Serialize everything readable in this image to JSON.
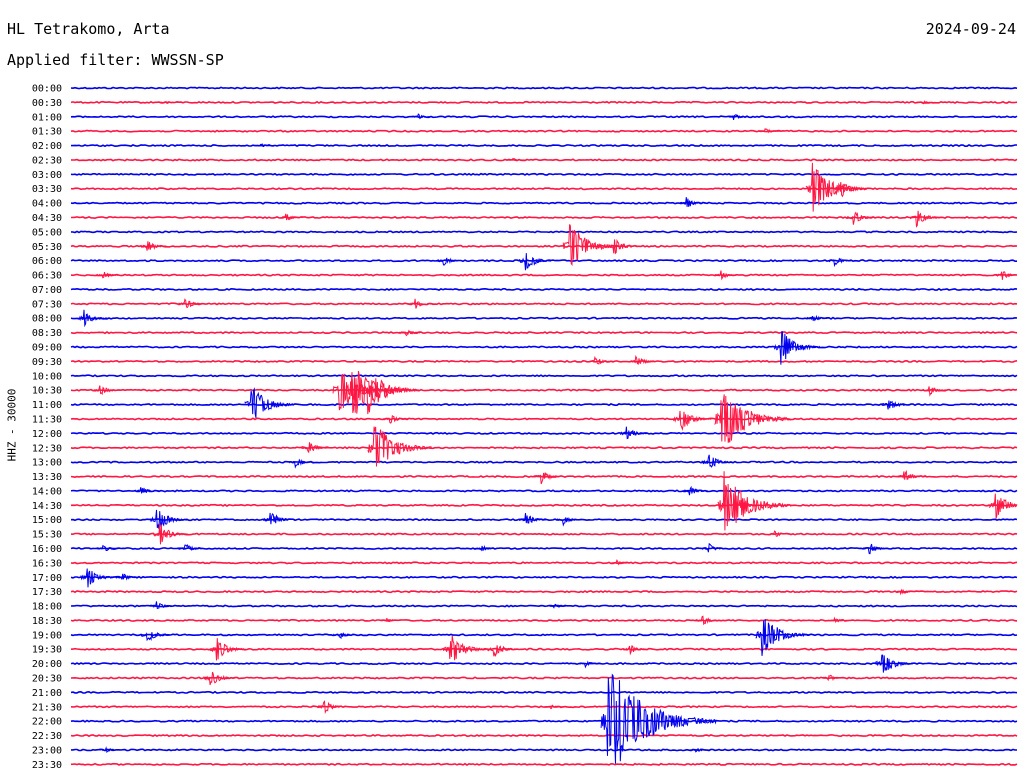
{
  "header": {
    "station": "HL Tetrakomo, Arta",
    "date": "2024-09-24",
    "filter": "Applied filter: WWSSN-SP"
  },
  "colors": {
    "odd_trace": "#0000ee",
    "even_trace": "#ff1744"
  },
  "chart_data": {
    "type": "line",
    "title": "HL Tetrakomo, Arta",
    "subtitle": "Applied filter: WWSSN-SP",
    "date": "2024-09-24",
    "ylabel": "HHZ - 30000",
    "rows": [
      "00:00",
      "00:30",
      "01:00",
      "01:30",
      "02:00",
      "02:30",
      "03:00",
      "03:30",
      "04:00",
      "04:30",
      "05:00",
      "05:30",
      "06:00",
      "06:30",
      "07:00",
      "07:30",
      "08:00",
      "08:30",
      "09:00",
      "09:30",
      "10:00",
      "10:30",
      "11:00",
      "11:30",
      "12:00",
      "12:30",
      "13:00",
      "13:30",
      "14:00",
      "14:30",
      "15:00",
      "15:30",
      "16:00",
      "16:30",
      "17:00",
      "17:30",
      "18:00",
      "18:30",
      "19:00",
      "19:30",
      "20:00",
      "20:30",
      "21:00",
      "21:30",
      "22:00",
      "22:30",
      "23:00",
      "23:30"
    ],
    "row_colors": [
      "blue",
      "red"
    ],
    "minutes_per_row": 30,
    "events": [
      {
        "row": "00:30",
        "minute": 3,
        "amp": 2
      },
      {
        "row": "00:30",
        "minute": 27,
        "amp": 2
      },
      {
        "row": "01:00",
        "minute": 11,
        "amp": 3
      },
      {
        "row": "01:00",
        "minute": 21,
        "amp": 4
      },
      {
        "row": "01:30",
        "minute": 22,
        "amp": 4
      },
      {
        "row": "02:00",
        "minute": 6,
        "amp": 3
      },
      {
        "row": "02:30",
        "minute": 14,
        "amp": 2
      },
      {
        "row": "03:30",
        "minute": 23.5,
        "amp": 28
      },
      {
        "row": "03:30",
        "minute": 24.4,
        "amp": 10
      },
      {
        "row": "04:00",
        "minute": 19.5,
        "amp": 7
      },
      {
        "row": "04:30",
        "minute": 6.8,
        "amp": 5
      },
      {
        "row": "04:30",
        "minute": 24.8,
        "amp": 8
      },
      {
        "row": "04:30",
        "minute": 26.8,
        "amp": 10
      },
      {
        "row": "05:30",
        "minute": 2.4,
        "amp": 7
      },
      {
        "row": "05:30",
        "minute": 15.8,
        "amp": 26
      },
      {
        "row": "05:30",
        "minute": 17.2,
        "amp": 10
      },
      {
        "row": "06:00",
        "minute": 11.8,
        "amp": 6
      },
      {
        "row": "06:00",
        "minute": 14.4,
        "amp": 12
      },
      {
        "row": "06:00",
        "minute": 24.2,
        "amp": 6
      },
      {
        "row": "06:30",
        "minute": 1,
        "amp": 5
      },
      {
        "row": "06:30",
        "minute": 20.6,
        "amp": 5
      },
      {
        "row": "06:30",
        "minute": 29.5,
        "amp": 6
      },
      {
        "row": "07:30",
        "minute": 3.6,
        "amp": 7
      },
      {
        "row": "07:30",
        "minute": 10.9,
        "amp": 6
      },
      {
        "row": "08:00",
        "minute": 0.4,
        "amp": 9
      },
      {
        "row": "08:00",
        "minute": 23.5,
        "amp": 5
      },
      {
        "row": "08:30",
        "minute": 10.6,
        "amp": 5
      },
      {
        "row": "09:00",
        "minute": 22.5,
        "amp": 20
      },
      {
        "row": "09:30",
        "minute": 16.6,
        "amp": 6
      },
      {
        "row": "09:30",
        "minute": 17.9,
        "amp": 7
      },
      {
        "row": "10:30",
        "minute": 0.9,
        "amp": 7
      },
      {
        "row": "10:30",
        "minute": 8.5,
        "amp": 28
      },
      {
        "row": "10:30",
        "minute": 8.9,
        "amp": 32
      },
      {
        "row": "10:30",
        "minute": 9.4,
        "amp": 26
      },
      {
        "row": "10:30",
        "minute": 27.2,
        "amp": 6
      },
      {
        "row": "11:00",
        "minute": 5.7,
        "amp": 22
      },
      {
        "row": "11:00",
        "minute": 25.9,
        "amp": 8
      },
      {
        "row": "11:30",
        "minute": 10.1,
        "amp": 6
      },
      {
        "row": "11:30",
        "minute": 20.6,
        "amp": 38
      },
      {
        "row": "11:30",
        "minute": 19.3,
        "amp": 14
      },
      {
        "row": "12:00",
        "minute": 17.6,
        "amp": 8
      },
      {
        "row": "12:30",
        "minute": 9.6,
        "amp": 30
      },
      {
        "row": "12:30",
        "minute": 7.5,
        "amp": 8
      },
      {
        "row": "13:00",
        "minute": 7.1,
        "amp": 6
      },
      {
        "row": "13:00",
        "minute": 20.2,
        "amp": 10
      },
      {
        "row": "13:30",
        "minute": 14.9,
        "amp": 8
      },
      {
        "row": "13:30",
        "minute": 26.4,
        "amp": 8
      },
      {
        "row": "14:00",
        "minute": 2.2,
        "amp": 6
      },
      {
        "row": "14:00",
        "minute": 19.6,
        "amp": 6
      },
      {
        "row": "14:30",
        "minute": 20.7,
        "amp": 36
      },
      {
        "row": "14:30",
        "minute": 21.2,
        "amp": 7
      },
      {
        "row": "14:30",
        "minute": 29.3,
        "amp": 16
      },
      {
        "row": "15:00",
        "minute": 2.7,
        "amp": 14
      },
      {
        "row": "15:00",
        "minute": 6.3,
        "amp": 10
      },
      {
        "row": "15:00",
        "minute": 14.4,
        "amp": 8
      },
      {
        "row": "15:00",
        "minute": 15.6,
        "amp": 6
      },
      {
        "row": "15:30",
        "minute": 2.8,
        "amp": 12
      },
      {
        "row": "15:30",
        "minute": 22.3,
        "amp": 5
      },
      {
        "row": "16:00",
        "minute": 1,
        "amp": 5
      },
      {
        "row": "16:00",
        "minute": 3.6,
        "amp": 6
      },
      {
        "row": "16:00",
        "minute": 13,
        "amp": 4
      },
      {
        "row": "16:00",
        "minute": 20.2,
        "amp": 6
      },
      {
        "row": "16:00",
        "minute": 25.3,
        "amp": 7
      },
      {
        "row": "16:30",
        "minute": 17.3,
        "amp": 3
      },
      {
        "row": "17:00",
        "minute": 0.5,
        "amp": 12
      },
      {
        "row": "17:00",
        "minute": 1.6,
        "amp": 5
      },
      {
        "row": "17:30",
        "minute": 26.3,
        "amp": 4
      },
      {
        "row": "18:00",
        "minute": 2.7,
        "amp": 6
      },
      {
        "row": "18:00",
        "minute": 15.3,
        "amp": 3
      },
      {
        "row": "18:30",
        "minute": 10,
        "amp": 3
      },
      {
        "row": "18:30",
        "minute": 20,
        "amp": 6
      },
      {
        "row": "18:30",
        "minute": 24.2,
        "amp": 3
      },
      {
        "row": "19:00",
        "minute": 2.4,
        "amp": 9
      },
      {
        "row": "19:00",
        "minute": 8.5,
        "amp": 5
      },
      {
        "row": "19:00",
        "minute": 21.9,
        "amp": 24
      },
      {
        "row": "19:30",
        "minute": 4.6,
        "amp": 13
      },
      {
        "row": "19:30",
        "minute": 12,
        "amp": 18
      },
      {
        "row": "19:30",
        "minute": 13.4,
        "amp": 10
      },
      {
        "row": "19:30",
        "minute": 17.7,
        "amp": 6
      },
      {
        "row": "20:00",
        "minute": 16.3,
        "amp": 4
      },
      {
        "row": "20:00",
        "minute": 25.7,
        "amp": 14
      },
      {
        "row": "20:30",
        "minute": 4.4,
        "amp": 10
      },
      {
        "row": "20:30",
        "minute": 24,
        "amp": 5
      },
      {
        "row": "21:30",
        "minute": 8,
        "amp": 8
      },
      {
        "row": "21:30",
        "minute": 15.2,
        "amp": 3
      },
      {
        "row": "22:00",
        "minute": 17,
        "amp": 62
      },
      {
        "row": "23:00",
        "minute": 1.1,
        "amp": 4
      },
      {
        "row": "23:00",
        "minute": 19.8,
        "amp": 3
      }
    ]
  }
}
